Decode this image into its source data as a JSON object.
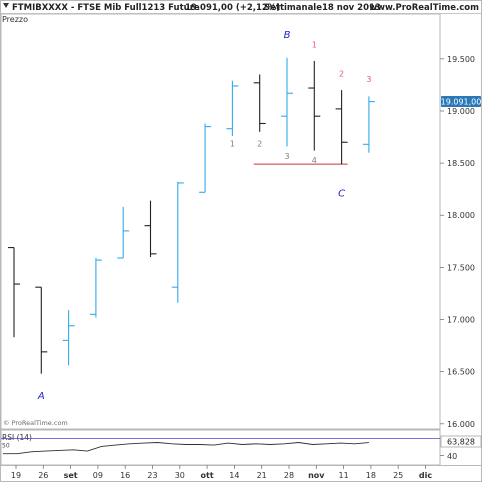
{
  "header": {
    "ticker": "FTMIBXXXX",
    "description": "FTSE Mib Full1213 Future",
    "quote": "19.091,00 (+2,12%)",
    "period": "Settimanale",
    "date": "18 nov 2013",
    "site": "www.ProRealTime.com"
  },
  "price_panel_label": "Prezzo",
  "watermark": "© ProRealTime.com",
  "rsi_panel": {
    "label": "RSI (14)",
    "current_value_label": "63,828",
    "left_tick": "50",
    "right_tick": "40",
    "current_value": 63.828
  },
  "colors": {
    "up_bar": "#33aaee",
    "down_bar": "#222222",
    "wave_label": "#2222cc",
    "red_count": "#e06070",
    "grey_count": "#808080",
    "support_line": "#cc3333",
    "rsi_line": "#303030",
    "rsi_band": "#4444cc",
    "current_price_badge": "#2a78b8"
  },
  "chart_data": {
    "type": "ohlc",
    "title": "FTSE Mib Full1213 Future",
    "ylabel": "Prezzo",
    "y_ticks": [
      16.0,
      16.5,
      17.0,
      17.5,
      18.0,
      18.5,
      19.0,
      19.5
    ],
    "y_tick_labels": [
      "16.000",
      "16.500",
      "17.000",
      "17.500",
      "18.000",
      "18.500",
      "19.000",
      "19.500"
    ],
    "ylim": [
      15.95,
      19.93
    ],
    "x_tick_labels": [
      "19",
      "26",
      "set",
      "09",
      "16",
      "23",
      "30",
      "ott",
      "14",
      "21",
      "28",
      "nov",
      "11",
      "18",
      "25",
      "dic"
    ],
    "x_bold_labels": [
      "set",
      "ott",
      "nov",
      "dic"
    ],
    "current_price_label": "19.091,00",
    "current_price": 19.091,
    "bars": [
      {
        "i": 0,
        "open": 17.69,
        "high": 17.69,
        "low": 16.83,
        "close": 17.34
      },
      {
        "i": 1,
        "open": 17.31,
        "high": 17.31,
        "low": 16.48,
        "close": 16.69
      },
      {
        "i": 2,
        "open": 16.8,
        "high": 17.09,
        "low": 16.56,
        "close": 16.94
      },
      {
        "i": 3,
        "open": 17.05,
        "high": 17.59,
        "low": 17.02,
        "close": 17.57
      },
      {
        "i": 4,
        "open": 17.59,
        "high": 18.08,
        "low": 17.59,
        "close": 17.85
      },
      {
        "i": 5,
        "open": 17.9,
        "high": 18.14,
        "low": 17.6,
        "close": 17.63
      },
      {
        "i": 6,
        "open": 17.31,
        "high": 18.32,
        "low": 17.16,
        "close": 18.31
      },
      {
        "i": 7,
        "open": 18.22,
        "high": 18.88,
        "low": 18.22,
        "close": 18.85
      },
      {
        "i": 8,
        "open": 18.83,
        "high": 19.29,
        "low": 18.76,
        "close": 19.24
      },
      {
        "i": 9,
        "open": 19.27,
        "high": 19.35,
        "low": 18.8,
        "close": 18.88
      },
      {
        "i": 10,
        "open": 18.95,
        "high": 19.51,
        "low": 18.66,
        "close": 19.17
      },
      {
        "i": 11,
        "open": 19.22,
        "high": 19.48,
        "low": 18.62,
        "close": 18.95
      },
      {
        "i": 12,
        "open": 19.02,
        "high": 19.2,
        "low": 18.49,
        "close": 18.7
      },
      {
        "i": 13,
        "open": 18.68,
        "high": 19.14,
        "low": 18.6,
        "close": 19.09
      }
    ],
    "support_level": 18.49,
    "wave_labels": [
      {
        "text": "A",
        "bar": 1,
        "price": 16.24
      },
      {
        "text": "B",
        "bar": 10,
        "price": 19.7
      },
      {
        "text": "C",
        "bar": 12,
        "price": 18.18
      }
    ],
    "count_labels": [
      {
        "text": "1",
        "bar": 8,
        "price": 18.66,
        "color": "grey"
      },
      {
        "text": "2",
        "bar": 9,
        "price": 18.66,
        "color": "grey"
      },
      {
        "text": "3",
        "bar": 10,
        "price": 18.54,
        "color": "grey"
      },
      {
        "text": "4",
        "bar": 11,
        "price": 18.5,
        "color": "grey"
      },
      {
        "text": "1",
        "bar": 11,
        "price": 19.61,
        "color": "red"
      },
      {
        "text": "2",
        "bar": 12,
        "price": 19.33,
        "color": "red"
      },
      {
        "text": "3",
        "bar": 13,
        "price": 19.28,
        "color": "red"
      }
    ],
    "rsi_ylim": [
      30,
      75
    ],
    "rsi_values": [
      47,
      47,
      50,
      51,
      52,
      53,
      51,
      58,
      60,
      62,
      63,
      64,
      62,
      61,
      61,
      60,
      63,
      61,
      62,
      61,
      62,
      64,
      61,
      62,
      63,
      62,
      63.8
    ],
    "rsi_band_level": 70
  }
}
